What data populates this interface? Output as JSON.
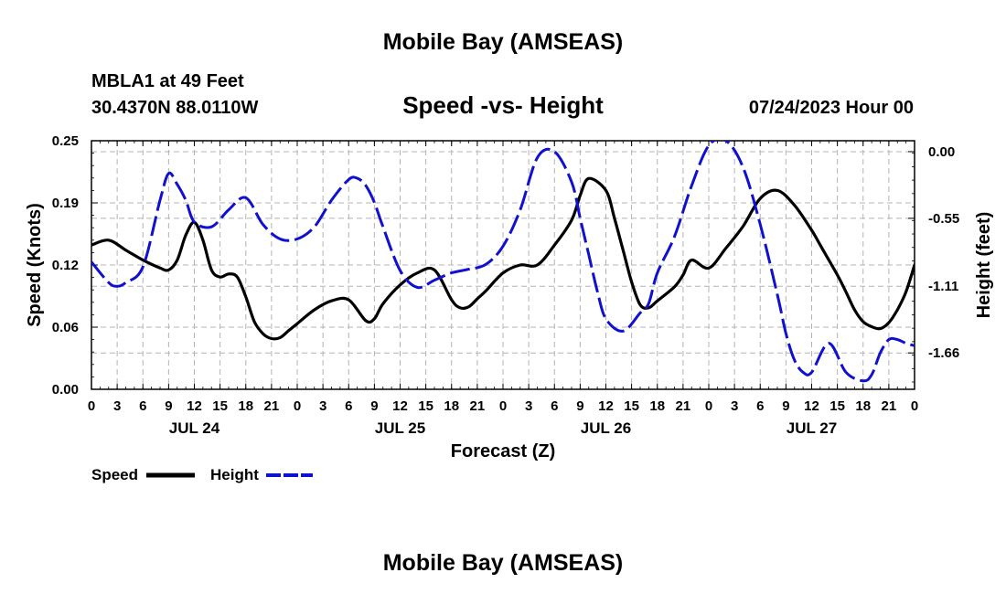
{
  "page_title": "Mobile Bay (AMSEAS)",
  "page_title_repeat": "Mobile Bay (AMSEAS)",
  "station": {
    "name_line": "MBLA1 at 49 Feet",
    "coords_line": "30.4370N  88.0110W"
  },
  "date_line": "07/24/2023 Hour 00",
  "legend": {
    "speed_label": "Speed",
    "height_label": "Height"
  },
  "colors": {
    "speed": "#000000",
    "height": "#1010d0",
    "grid": "#b4b4b4"
  },
  "chart_data": {
    "type": "line",
    "title": "Speed -vs- Height",
    "xlabel": "Forecast (Z)",
    "ylabel": "Speed (Knots)",
    "y2label": "Height (feet)",
    "xlim": [
      0,
      96
    ],
    "ylim": [
      0,
      0.25
    ],
    "y2lim": [
      -1.96,
      0.09
    ],
    "yticks": [
      "0.00",
      "0.06",
      "0.12",
      "0.19",
      "0.25"
    ],
    "y2ticks": [
      "0.00",
      "-0.55",
      "-1.11",
      "-1.66"
    ],
    "xtick_labels": [
      "0",
      "3",
      "6",
      "9",
      "12",
      "15",
      "18",
      "21",
      "0",
      "3",
      "6",
      "9",
      "12",
      "15",
      "18",
      "21",
      "0",
      "3",
      "6",
      "9",
      "12",
      "15",
      "18",
      "21",
      "0",
      "3",
      "6",
      "9",
      "12",
      "15",
      "18",
      "21",
      "0"
    ],
    "day_labels": [
      "JUL 24",
      "JUL 25",
      "JUL 26",
      "JUL 27"
    ],
    "series": [
      {
        "name": "Speed",
        "axis": "left",
        "style": "solid",
        "x": [
          0,
          2,
          4,
          6,
          8,
          9,
          10,
          11,
          12,
          13,
          14,
          15,
          16,
          17,
          18,
          19,
          20,
          21,
          22,
          23,
          24,
          26,
          28,
          30,
          32,
          33,
          34,
          36,
          38,
          40,
          42,
          43,
          44,
          45,
          46,
          48,
          50,
          52,
          54,
          56,
          57,
          58,
          60,
          61,
          62,
          63,
          64,
          65,
          66,
          68,
          69,
          70,
          72,
          74,
          76,
          78,
          80,
          82,
          84,
          85,
          86,
          87,
          88,
          89,
          90,
          91,
          92,
          93,
          94,
          95,
          96
        ],
        "y": [
          0.145,
          0.15,
          0.14,
          0.13,
          0.122,
          0.12,
          0.13,
          0.155,
          0.168,
          0.15,
          0.12,
          0.113,
          0.116,
          0.113,
          0.093,
          0.068,
          0.056,
          0.051,
          0.052,
          0.059,
          0.066,
          0.08,
          0.089,
          0.09,
          0.069,
          0.071,
          0.086,
          0.105,
          0.117,
          0.12,
          0.09,
          0.082,
          0.083,
          0.091,
          0.099,
          0.117,
          0.125,
          0.125,
          0.145,
          0.17,
          0.195,
          0.212,
          0.2,
          0.172,
          0.14,
          0.108,
          0.085,
          0.082,
          0.089,
          0.103,
          0.115,
          0.13,
          0.122,
          0.142,
          0.164,
          0.192,
          0.2,
          0.185,
          0.16,
          0.145,
          0.13,
          0.115,
          0.098,
          0.08,
          0.068,
          0.063,
          0.061,
          0.067,
          0.08,
          0.098,
          0.125
        ]
      },
      {
        "name": "Height",
        "axis": "right",
        "style": "dashed",
        "x": [
          0,
          2,
          3,
          4,
          6,
          8,
          9,
          10,
          11,
          12,
          14,
          16,
          18,
          20,
          22,
          24,
          26,
          28,
          30,
          31,
          32,
          33,
          34,
          36,
          38,
          40,
          42,
          44,
          46,
          48,
          50,
          52,
          54,
          56,
          57,
          58,
          59,
          60,
          62,
          64,
          65,
          66,
          68,
          70,
          72,
          74,
          76,
          78,
          80,
          81,
          82,
          83,
          84,
          86,
          88,
          90,
          91,
          92,
          93,
          94,
          95,
          96
        ],
        "y": [
          -0.91,
          -1.08,
          -1.11,
          -1.08,
          -0.95,
          -0.4,
          -0.18,
          -0.27,
          -0.4,
          -0.58,
          -0.62,
          -0.48,
          -0.38,
          -0.6,
          -0.72,
          -0.72,
          -0.62,
          -0.4,
          -0.23,
          -0.22,
          -0.28,
          -0.42,
          -0.62,
          -0.98,
          -1.12,
          -1.06,
          -1.0,
          -0.97,
          -0.93,
          -0.78,
          -0.48,
          -0.05,
          0.0,
          -0.25,
          -0.55,
          -0.85,
          -1.15,
          -1.38,
          -1.48,
          -1.33,
          -1.25,
          -1.0,
          -0.7,
          -0.28,
          0.05,
          0.09,
          -0.13,
          -0.6,
          -1.18,
          -1.5,
          -1.72,
          -1.82,
          -1.82,
          -1.58,
          -1.82,
          -1.89,
          -1.84,
          -1.66,
          -1.55,
          -1.55,
          -1.58,
          -1.6
        ]
      }
    ]
  }
}
